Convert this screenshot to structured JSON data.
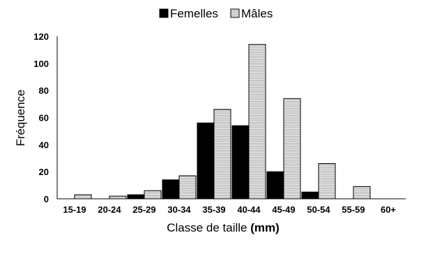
{
  "chart_data": {
    "type": "bar",
    "title": "",
    "xlabel_main": "Classe de taille ",
    "xlabel_unit": "(mm)",
    "ylabel": "Fréquence",
    "ylim": [
      0,
      120
    ],
    "yticks": [
      "0",
      "20",
      "40",
      "60",
      "80",
      "100",
      "120"
    ],
    "grid": false,
    "legend_position": "top-center",
    "categories": [
      "15-19",
      "20-24",
      "25-29",
      "30-34",
      "35-39",
      "40-44",
      "45-49",
      "50-54",
      "55-59",
      "60+"
    ],
    "series": [
      {
        "name": "Femelles",
        "color": "#000000",
        "pattern": "solid",
        "values": [
          0,
          0,
          3,
          14,
          56,
          54,
          20,
          5,
          0,
          0
        ]
      },
      {
        "name": "Mâles",
        "color": "#d9d9d9",
        "pattern": "horizontal-lines",
        "values": [
          3,
          2,
          6,
          17,
          66,
          114,
          74,
          26,
          9,
          0
        ]
      }
    ]
  }
}
